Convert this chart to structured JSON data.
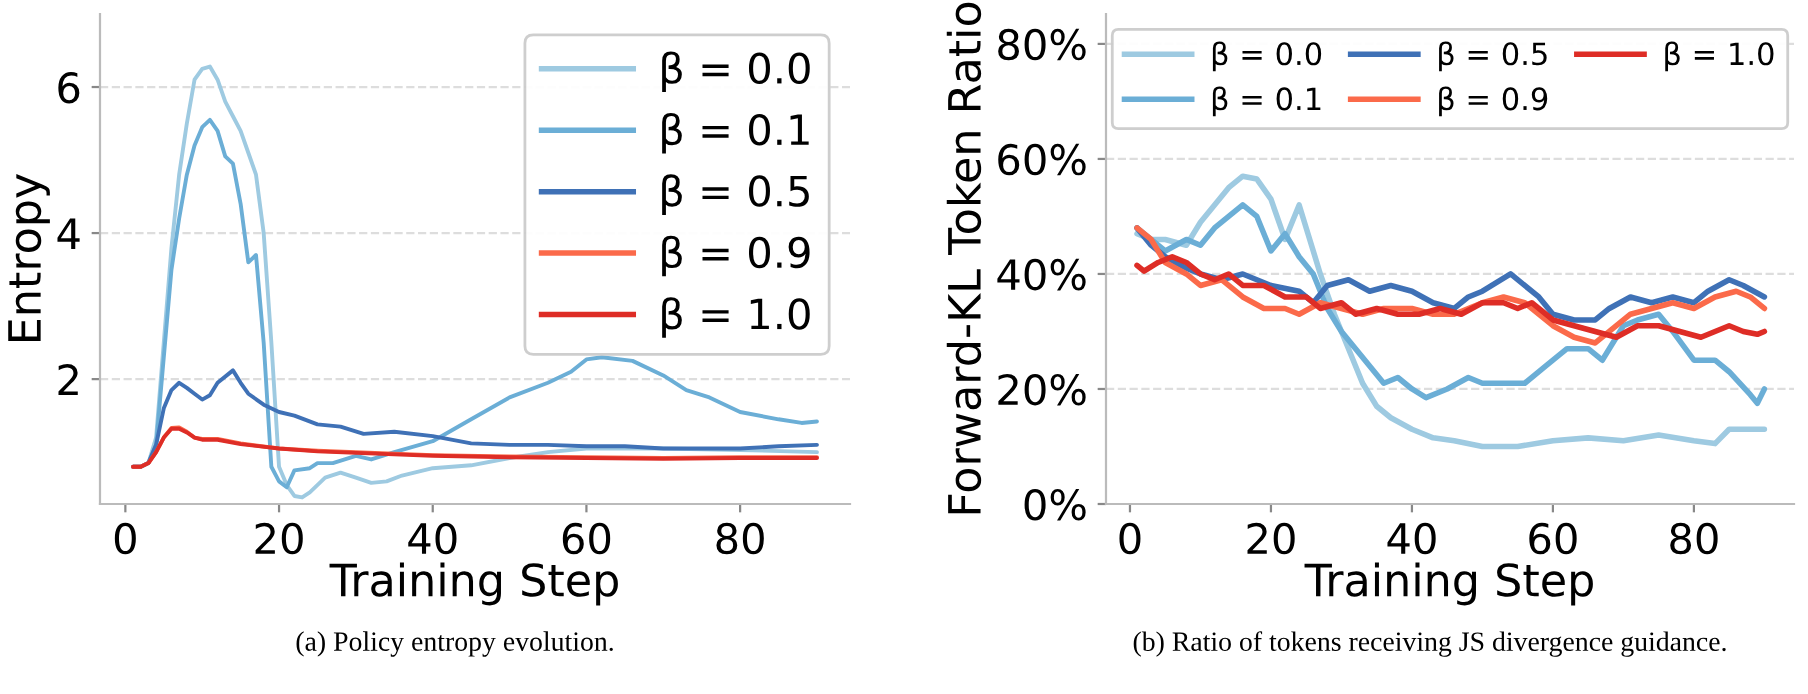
{
  "chart_data": [
    {
      "type": "line",
      "xlabel": "Training Step",
      "ylabel": "Entropy",
      "xlim": [
        -3.3,
        94.3
      ],
      "ylim": [
        0.29,
        7.0
      ],
      "xticks": [
        0,
        20,
        40,
        60,
        80
      ],
      "yticks": [
        2,
        4,
        6
      ],
      "grid": "y",
      "legend": "top right",
      "line_style": "solid",
      "annotations": [
        "(a) Policy entropy evolution."
      ],
      "series": [
        {
          "name": "β = 0.0",
          "color": "#9ecae1",
          "x": [
            1,
            2,
            3,
            4,
            5,
            6,
            7,
            8,
            9,
            10,
            11,
            12,
            13,
            14,
            15,
            16,
            17,
            18,
            19,
            20,
            21,
            22,
            23,
            24,
            26,
            28,
            30,
            32,
            34,
            36,
            40,
            45,
            50,
            55,
            60,
            70,
            80,
            90
          ],
          "values": [
            0.8,
            0.8,
            0.85,
            1.2,
            2.5,
            3.8,
            4.8,
            5.5,
            6.1,
            6.25,
            6.28,
            6.1,
            5.8,
            5.6,
            5.4,
            5.1,
            4.8,
            4.0,
            2.5,
            0.8,
            0.55,
            0.4,
            0.38,
            0.45,
            0.65,
            0.72,
            0.65,
            0.58,
            0.6,
            0.68,
            0.78,
            0.82,
            0.92,
            1.0,
            1.05,
            1.05,
            1.03,
            1.0
          ]
        },
        {
          "name": "β = 0.1",
          "color": "#6baed6",
          "x": [
            1,
            2,
            3,
            4,
            5,
            6,
            7,
            8,
            9,
            10,
            11,
            12,
            13,
            14,
            15,
            16,
            17,
            18,
            19,
            20,
            21,
            22,
            24,
            25,
            27,
            30,
            32,
            35,
            40,
            45,
            50,
            55,
            58,
            60,
            62,
            66,
            70,
            73,
            76,
            80,
            85,
            88,
            90
          ],
          "values": [
            0.8,
            0.8,
            0.85,
            1.1,
            2.3,
            3.5,
            4.2,
            4.8,
            5.2,
            5.45,
            5.55,
            5.4,
            5.05,
            4.95,
            4.4,
            3.6,
            3.7,
            2.5,
            0.8,
            0.6,
            0.52,
            0.75,
            0.78,
            0.85,
            0.85,
            0.95,
            0.9,
            1.0,
            1.15,
            1.45,
            1.75,
            1.95,
            2.1,
            2.27,
            2.3,
            2.25,
            2.05,
            1.85,
            1.75,
            1.55,
            1.45,
            1.4,
            1.42
          ]
        },
        {
          "name": "β = 0.5",
          "color": "#3f71b6",
          "x": [
            1,
            2,
            3,
            4,
            5,
            6,
            7,
            8,
            9,
            10,
            11,
            12,
            14,
            15,
            16,
            18,
            20,
            22,
            25,
            28,
            31,
            35,
            40,
            45,
            50,
            55,
            60,
            65,
            70,
            75,
            80,
            85,
            90
          ],
          "values": [
            0.8,
            0.8,
            0.85,
            1.1,
            1.6,
            1.85,
            1.95,
            1.88,
            1.8,
            1.72,
            1.78,
            1.95,
            2.12,
            1.95,
            1.8,
            1.65,
            1.55,
            1.5,
            1.38,
            1.35,
            1.25,
            1.28,
            1.22,
            1.12,
            1.1,
            1.1,
            1.08,
            1.08,
            1.05,
            1.05,
            1.05,
            1.08,
            1.1
          ]
        },
        {
          "name": "β = 0.9",
          "color": "#fb6a4a",
          "x": [
            1,
            2,
            3,
            4,
            5,
            6,
            7,
            8,
            9,
            10,
            12,
            15,
            20,
            25,
            30,
            35,
            40,
            50,
            60,
            70,
            80,
            90
          ],
          "values": [
            0.8,
            0.8,
            0.85,
            1.0,
            1.2,
            1.33,
            1.34,
            1.28,
            1.2,
            1.18,
            1.18,
            1.12,
            1.05,
            1.02,
            1.0,
            0.98,
            0.96,
            0.94,
            0.93,
            0.92,
            0.93,
            0.93
          ]
        },
        {
          "name": "β = 1.0",
          "color": "#de2d26",
          "x": [
            1,
            2,
            3,
            4,
            5,
            6,
            7,
            8,
            9,
            10,
            12,
            15,
            20,
            25,
            30,
            35,
            40,
            50,
            60,
            70,
            80,
            90
          ],
          "values": [
            0.8,
            0.8,
            0.85,
            1.0,
            1.2,
            1.32,
            1.32,
            1.27,
            1.2,
            1.17,
            1.17,
            1.11,
            1.05,
            1.01,
            0.99,
            0.97,
            0.95,
            0.93,
            0.92,
            0.91,
            0.92,
            0.92
          ]
        }
      ]
    },
    {
      "type": "line",
      "xlabel": "Training Step",
      "ylabel": "Forward-KL Token Ratio",
      "xlim": [
        -3.4,
        94.2
      ],
      "ylim": [
        0,
        85.2
      ],
      "xticks": [
        0,
        20,
        40,
        60,
        80
      ],
      "yticks": [
        {
          "value": 0,
          "label": "0%"
        },
        {
          "value": 20,
          "label": "20%"
        },
        {
          "value": 40,
          "label": "40%"
        },
        {
          "value": 60,
          "label": "60%"
        },
        {
          "value": 80,
          "label": "80%"
        }
      ],
      "grid": "y",
      "legend": "top",
      "line_style": "solid",
      "annotations": [
        "(b) Ratio of tokens receiving JS divergence guidance."
      ],
      "series": [
        {
          "name": "β = 0.0",
          "color": "#9ecae1",
          "x": [
            1,
            3,
            5,
            8,
            10,
            12,
            14,
            16,
            18,
            20,
            22,
            24,
            25,
            27,
            29,
            31,
            33,
            35,
            37,
            40,
            43,
            46,
            50,
            55,
            60,
            65,
            70,
            75,
            80,
            83,
            85,
            88,
            90
          ],
          "values": [
            47,
            46,
            46,
            45,
            49,
            52,
            55,
            57,
            56.5,
            53,
            46,
            52,
            48,
            40,
            33,
            27,
            21,
            17,
            15,
            13,
            11.5,
            11,
            10,
            10,
            11,
            11.5,
            11,
            12,
            11,
            10.5,
            13,
            13,
            13
          ]
        },
        {
          "name": "β = 0.1",
          "color": "#6baed6",
          "x": [
            1,
            3,
            5,
            8,
            10,
            12,
            14,
            16,
            18,
            20,
            22,
            24,
            26,
            28,
            30,
            32,
            34,
            36,
            38,
            40,
            42,
            45,
            48,
            50,
            53,
            56,
            59,
            62,
            65,
            67,
            70,
            72,
            75,
            77,
            80,
            83,
            85,
            88,
            89,
            90
          ],
          "values": [
            48,
            46,
            44,
            46,
            45,
            48,
            50,
            52,
            50,
            44,
            47,
            43,
            40,
            34,
            30,
            27,
            24,
            21,
            22,
            20,
            18.5,
            20,
            22,
            21,
            21,
            21,
            24,
            27,
            27,
            25,
            31,
            32,
            33,
            30,
            25,
            25,
            23,
            19,
            17.5,
            20
          ]
        },
        {
          "name": "β = 0.5",
          "color": "#3f71b6",
          "x": [
            1,
            3,
            5,
            8,
            10,
            13,
            16,
            20,
            24,
            26,
            28,
            31,
            34,
            37,
            40,
            43,
            46,
            48,
            50,
            54,
            56,
            58,
            60,
            63,
            66,
            68,
            71,
            74,
            77,
            80,
            82,
            85,
            87,
            90
          ],
          "values": [
            48,
            45,
            43,
            41,
            40,
            39,
            40,
            38,
            37,
            35,
            38,
            39,
            37,
            38,
            37,
            35,
            34,
            36,
            37,
            40,
            38,
            36,
            33,
            32,
            32,
            34,
            36,
            35,
            36,
            35,
            37,
            39,
            38,
            36
          ]
        },
        {
          "name": "β = 0.9",
          "color": "#fb6a4a",
          "x": [
            1,
            3,
            5,
            8,
            10,
            13,
            16,
            19,
            22,
            24,
            27,
            30,
            33,
            36,
            40,
            43,
            46,
            50,
            53,
            56,
            60,
            63,
            66,
            68,
            71,
            74,
            77,
            80,
            83,
            86,
            88,
            90
          ],
          "values": [
            48,
            46,
            42,
            40,
            38,
            39,
            36,
            34,
            34,
            33,
            35,
            34,
            33,
            34,
            34,
            33,
            33,
            35,
            36,
            35,
            31,
            29,
            28,
            30,
            33,
            34,
            35,
            34,
            36,
            37,
            36,
            34
          ]
        },
        {
          "name": "β = 1.0",
          "color": "#de2d26",
          "x": [
            1,
            2,
            4,
            6,
            8,
            10,
            12,
            14,
            16,
            19,
            22,
            25,
            27,
            30,
            32,
            35,
            38,
            41,
            44,
            47,
            50,
            53,
            55,
            57,
            60,
            63,
            66,
            69,
            72,
            75,
            78,
            81,
            83,
            85,
            87,
            89,
            90
          ],
          "values": [
            41.5,
            40.5,
            42,
            43,
            42,
            40,
            39,
            40,
            38,
            38,
            36,
            36,
            34,
            35,
            33,
            34,
            33,
            33,
            34,
            33,
            35,
            35,
            34,
            35,
            32,
            31,
            30,
            29,
            31,
            31,
            30,
            29,
            30,
            31,
            30,
            29.5,
            30
          ]
        }
      ]
    }
  ]
}
